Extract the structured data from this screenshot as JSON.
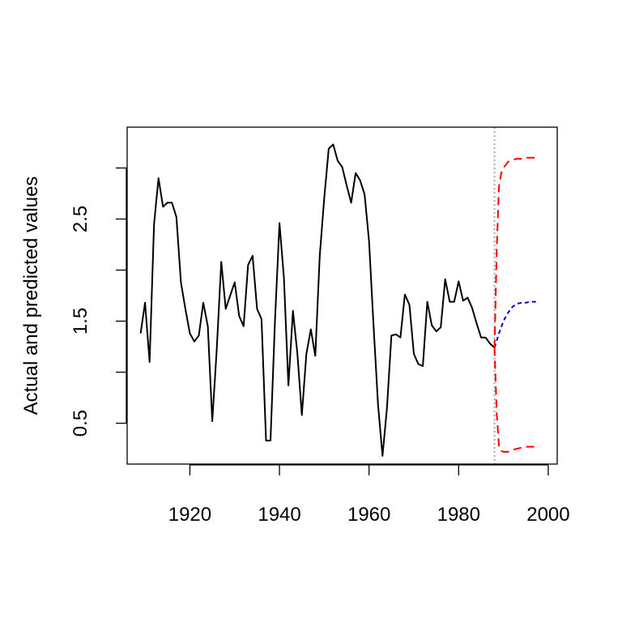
{
  "chart_data": {
    "type": "line",
    "title": "",
    "xlabel": "",
    "ylabel": "Actual and predicted values",
    "xlim": [
      1906,
      2002
    ],
    "ylim": [
      0.1,
      3.4
    ],
    "x_ticks": [
      1920,
      1940,
      1960,
      1980,
      2000
    ],
    "x_tick_labels": [
      "1920",
      "1940",
      "1960",
      "1980",
      "2000"
    ],
    "y_ticks": [
      0.5,
      1.0,
      1.5,
      2.0,
      2.5,
      3.0
    ],
    "y_tick_labels": [
      "0.5",
      "",
      "1.5",
      "",
      "2.5",
      ""
    ],
    "grid": false,
    "forecast_origin": 1988,
    "colors": {
      "actual": "#000000",
      "forecast": "#0000cc",
      "interval": "#ff0000",
      "origin_line": "#aaaaaa"
    },
    "series": [
      {
        "role": "actual",
        "x": [
          1909,
          1910,
          1911,
          1912,
          1913,
          1914,
          1915,
          1916,
          1917,
          1918,
          1919,
          1920,
          1921,
          1922,
          1923,
          1924,
          1925,
          1926,
          1927,
          1928,
          1929,
          1930,
          1931,
          1932,
          1933,
          1934,
          1935,
          1936,
          1937,
          1938,
          1939,
          1940,
          1941,
          1942,
          1943,
          1944,
          1945,
          1946,
          1947,
          1948,
          1949,
          1950,
          1951,
          1952,
          1953,
          1954,
          1955,
          1956,
          1957,
          1958,
          1959,
          1960,
          1961,
          1962,
          1963,
          1964,
          1965,
          1966,
          1967,
          1968,
          1969,
          1970,
          1971,
          1972,
          1973,
          1974,
          1975,
          1976,
          1977,
          1978,
          1979,
          1980,
          1981,
          1982,
          1983,
          1984,
          1985,
          1986,
          1987,
          1988
        ],
        "y": [
          1.38,
          1.68,
          1.1,
          2.45,
          2.9,
          2.62,
          2.66,
          2.66,
          2.52,
          1.88,
          1.62,
          1.38,
          1.3,
          1.36,
          1.68,
          1.45,
          0.52,
          1.22,
          2.08,
          1.62,
          1.75,
          1.88,
          1.55,
          1.45,
          2.05,
          2.14,
          1.62,
          1.52,
          0.33,
          0.33,
          1.5,
          2.46,
          1.92,
          0.87,
          1.6,
          1.18,
          0.58,
          1.18,
          1.42,
          1.16,
          2.14,
          2.71,
          3.19,
          3.23,
          3.07,
          3.01,
          2.83,
          2.66,
          2.95,
          2.88,
          2.74,
          2.28,
          1.46,
          0.68,
          0.18,
          0.65,
          1.36,
          1.37,
          1.34,
          1.76,
          1.66,
          1.18,
          1.08,
          1.06,
          1.69,
          1.46,
          1.4,
          1.44,
          1.91,
          1.69,
          1.69,
          1.89,
          1.7,
          1.73,
          1.63,
          1.48,
          1.34,
          1.34,
          1.28,
          1.24
        ]
      },
      {
        "role": "forecast",
        "x": [
          1988,
          1989,
          1990,
          1991,
          1992,
          1993,
          1994,
          1995,
          1996,
          1997,
          1998
        ],
        "y": [
          1.24,
          1.38,
          1.5,
          1.58,
          1.64,
          1.67,
          1.68,
          1.68,
          1.69,
          1.69,
          1.69
        ]
      },
      {
        "role": "interval_upper",
        "x": [
          1988,
          1988.5,
          1989,
          1989.5,
          1990,
          1991,
          1992,
          1993,
          1994,
          1995,
          1996,
          1997,
          1998
        ],
        "y": [
          1.24,
          2.2,
          2.82,
          2.95,
          3.0,
          3.06,
          3.08,
          3.09,
          3.09,
          3.1,
          3.1,
          3.1,
          3.11
        ]
      },
      {
        "role": "interval_lower",
        "x": [
          1988,
          1988.5,
          1989,
          1989.5,
          1990,
          1991,
          1992,
          1993,
          1994,
          1995,
          1996,
          1997,
          1998
        ],
        "y": [
          1.24,
          0.6,
          0.28,
          0.23,
          0.22,
          0.22,
          0.24,
          0.25,
          0.26,
          0.27,
          0.27,
          0.27,
          0.27
        ]
      }
    ]
  }
}
